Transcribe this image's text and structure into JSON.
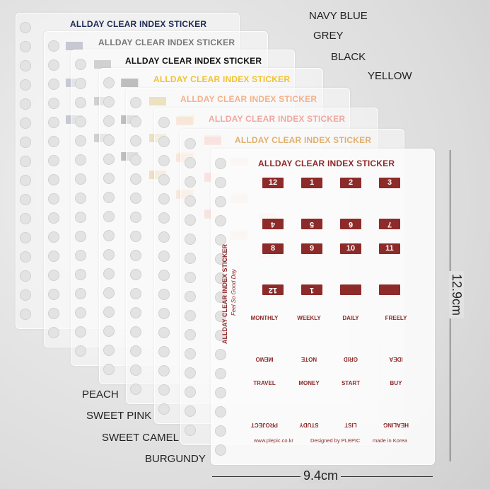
{
  "color_labels": [
    "NAVY BLUE",
    "GREY",
    "BLACK",
    "YELLOW",
    "PEACH",
    "SWEET PINK",
    "SWEET CAMEL",
    "BURGUNDY"
  ],
  "dimensions": {
    "height": "12.9cm",
    "width": "9.4cm"
  },
  "back_sheets": [
    {
      "title": "ALLDAY CLEAR INDEX STICKER"
    },
    {
      "title": "ALLDAY CLEAR INDEX STICKER"
    },
    {
      "title": "ALLDAY CLEAR INDEX STICKER"
    },
    {
      "title": "ALLDAY CLEAR INDEX STICKER"
    },
    {
      "title": "ALLDAY CLEAR INDEX STICKER"
    },
    {
      "title": "ALLDAY CLEAR INDEX STICKER"
    },
    {
      "title": "ALLDAY CLEAR INDEX STICKER"
    }
  ],
  "front_sheet": {
    "title": "ALLDAY CLEAR INDEX STICKER",
    "numbers": [
      [
        "12",
        "1",
        "2",
        "3"
      ],
      [
        "4",
        "5",
        "6",
        "7"
      ],
      [
        "8",
        "9",
        "10",
        "11"
      ],
      [
        "12",
        "1"
      ]
    ],
    "words": [
      [
        "MONTHLY",
        "WEEKLY",
        "DAILY",
        "FREELY"
      ],
      [
        "MEMO",
        "NOTE",
        "GRID",
        "IDEA"
      ],
      [
        "TRAVEL",
        "MONEY",
        "START",
        "BUY"
      ],
      [
        "PROJECT",
        "STUDY",
        "LIST",
        "HEALING"
      ]
    ],
    "side_title": "ALLDAY CLEAR INDEX STICKER",
    "side_subtitle": "Feel So Good Day",
    "footer": [
      "www.plepic.co.kr",
      "Designed by PLEPIC",
      "made in Korea"
    ]
  }
}
